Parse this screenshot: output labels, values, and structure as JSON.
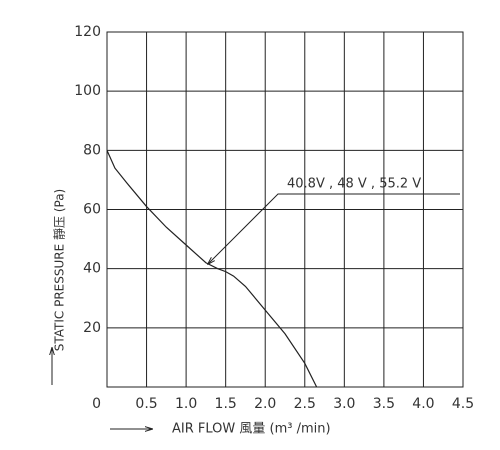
{
  "chart_data": {
    "type": "line",
    "x_label": "AIR FLOW 風量 (m³ /min)",
    "y_label": "STATIC PRESSURE 靜压 (Pa)",
    "annotation": "40.8V , 48 V , 55.2 V",
    "x": [
      0,
      0.1,
      0.25,
      0.5,
      0.75,
      1.0,
      1.25,
      1.4,
      1.5,
      1.6,
      1.75,
      2.0,
      2.25,
      2.5,
      2.65
    ],
    "series": [
      {
        "name": "40.8V , 48 V , 55.2 V",
        "color": "#222",
        "values": [
          80,
          74,
          69,
          61,
          54,
          48,
          42,
          40,
          39,
          37.5,
          34,
          26,
          18,
          8,
          0
        ]
      }
    ],
    "xlim": [
      0,
      4.5
    ],
    "ylim": [
      0,
      120
    ],
    "xticks": [
      0,
      0.5,
      {
        "value": 1,
        "label": "1.0"
      },
      1.5,
      {
        "value": 2,
        "label": "2.0"
      },
      2.5,
      {
        "value": 3,
        "label": "3.0"
      },
      3.5,
      {
        "value": 4,
        "label": "4.0"
      },
      4.5
    ],
    "yticks": [
      20,
      40,
      60,
      80,
      100,
      120
    ],
    "grid": true
  }
}
